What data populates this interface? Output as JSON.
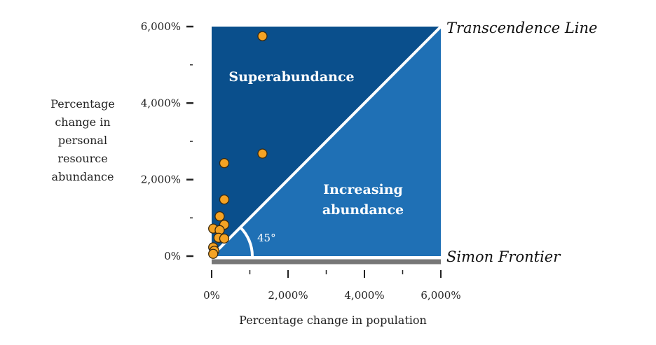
{
  "chart_data": {
    "type": "scatter",
    "title": "",
    "xlabel": "Percentage change in population",
    "ylabel_lines": [
      "Percentage",
      "change in",
      "personal",
      "resource",
      "abundance"
    ],
    "xlim": [
      0,
      6000
    ],
    "ylim": [
      0,
      6000
    ],
    "x_ticks": [
      {
        "value": 0,
        "label": "0%"
      },
      {
        "value": 2000,
        "label": "2,000%"
      },
      {
        "value": 4000,
        "label": "4,000%"
      },
      {
        "value": 6000,
        "label": "6,000%"
      }
    ],
    "x_minor_ticks": [
      1000,
      3000,
      5000
    ],
    "y_ticks": [
      {
        "value": 0,
        "label": "0%"
      },
      {
        "value": 2000,
        "label": "2,000%"
      },
      {
        "value": 4000,
        "label": "4,000%"
      },
      {
        "value": 6000,
        "label": "6,000%"
      }
    ],
    "y_minor_ticks": [
      1000,
      3000,
      5000
    ],
    "regions": {
      "upper": {
        "label": "Superabundance",
        "color": "#0a4f8c"
      },
      "lower": {
        "label_lines": [
          "Increasing",
          "abundance"
        ],
        "color": "#1f70b5"
      }
    },
    "annotations": {
      "diagonal": "Transcendence Line",
      "baseline": "Simon Frontier",
      "angle": "45°"
    },
    "colors": {
      "point_fill": "#f5a324",
      "point_stroke": "#3a2a10",
      "line": "#ffffff",
      "baseline": "#777777",
      "axis_ticks": "#222222"
    },
    "points": [
      {
        "x": 1330,
        "y": 5750
      },
      {
        "x": 1330,
        "y": 2680
      },
      {
        "x": 330,
        "y": 2430
      },
      {
        "x": 330,
        "y": 1480
      },
      {
        "x": 210,
        "y": 1040
      },
      {
        "x": 330,
        "y": 820
      },
      {
        "x": 40,
        "y": 720
      },
      {
        "x": 210,
        "y": 680
      },
      {
        "x": 180,
        "y": 480
      },
      {
        "x": 330,
        "y": 460
      },
      {
        "x": 40,
        "y": 230
      },
      {
        "x": 70,
        "y": 140
      },
      {
        "x": 40,
        "y": 60
      }
    ]
  }
}
